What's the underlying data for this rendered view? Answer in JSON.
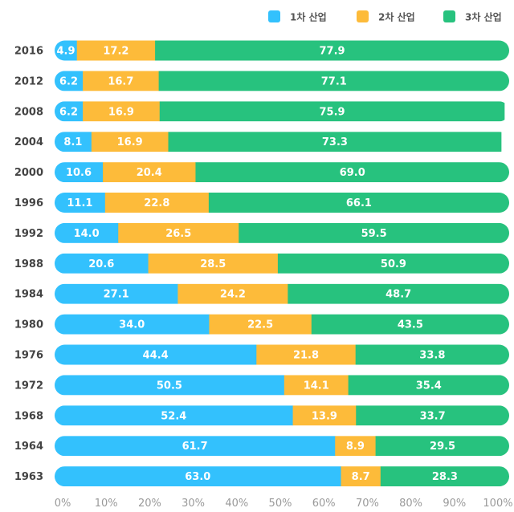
{
  "chart_data": {
    "type": "bar",
    "orientation": "horizontal",
    "stacked": true,
    "title": "",
    "xlabel": "",
    "ylabel": "",
    "xlim": [
      0,
      100
    ],
    "x_ticks": [
      "0%",
      "10%",
      "20%",
      "30%",
      "40%",
      "50%",
      "60%",
      "70%",
      "80%",
      "90%",
      "100%"
    ],
    "legend": {
      "position": "top-right"
    },
    "grid": false,
    "categories": [
      "2016",
      "2012",
      "2008",
      "2004",
      "2000",
      "1996",
      "1992",
      "1988",
      "1984",
      "1980",
      "1976",
      "1972",
      "1968",
      "1964",
      "1963"
    ],
    "series": [
      {
        "name": "1차 산업",
        "color": "#33c1fd",
        "values": [
          4.9,
          6.2,
          6.2,
          8.1,
          10.6,
          11.1,
          14.0,
          20.6,
          27.1,
          34.0,
          44.4,
          50.5,
          52.4,
          61.7,
          63.0
        ]
      },
      {
        "name": "2차 산업",
        "color": "#fdbb3a",
        "values": [
          17.2,
          16.7,
          16.9,
          16.9,
          20.4,
          22.8,
          26.5,
          28.5,
          24.2,
          22.5,
          21.8,
          14.1,
          13.9,
          8.9,
          8.7
        ]
      },
      {
        "name": "3차 산업",
        "color": "#27c27e",
        "values": [
          77.9,
          77.1,
          75.9,
          73.3,
          69.0,
          66.1,
          59.5,
          50.9,
          48.7,
          43.5,
          33.8,
          35.4,
          33.7,
          29.5,
          28.3
        ]
      }
    ]
  }
}
